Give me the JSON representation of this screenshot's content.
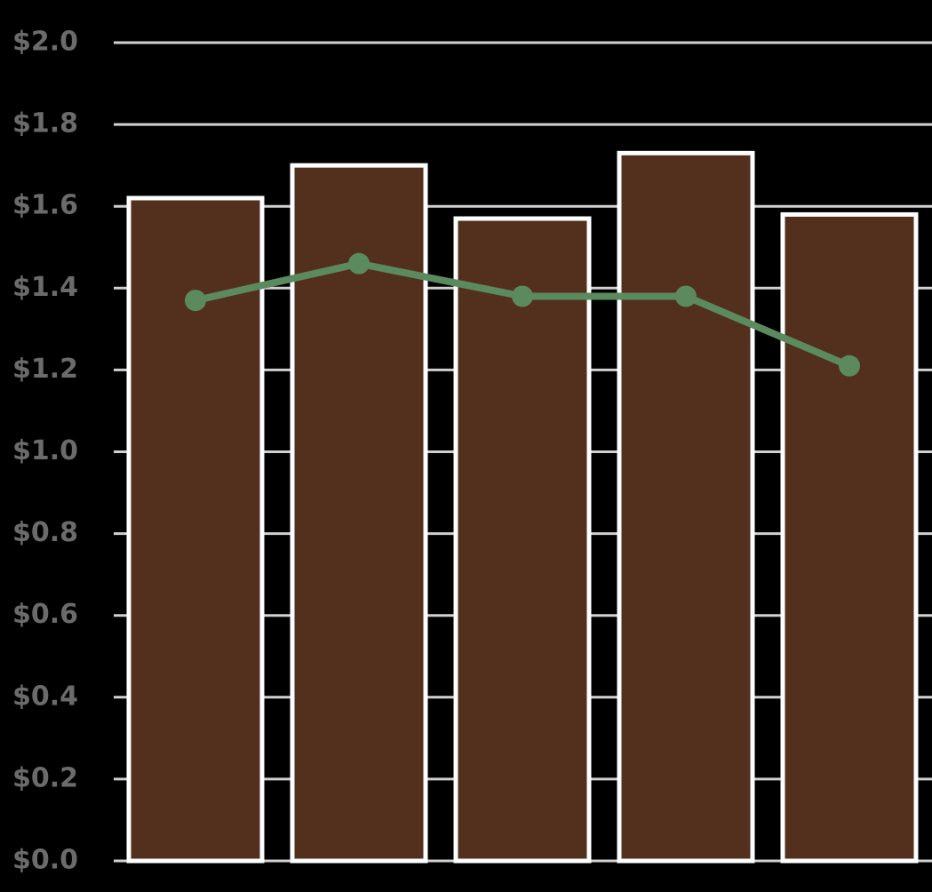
{
  "chart_data": {
    "type": "bar",
    "categories": [
      null,
      null,
      null,
      null,
      null
    ],
    "series": [
      {
        "type": "bar",
        "color": "#53301e",
        "values": [
          1.62,
          1.7,
          1.57,
          1.73,
          1.58
        ]
      },
      {
        "type": "line",
        "color": "#5b8a5f",
        "values": [
          1.37,
          1.46,
          1.38,
          1.38,
          1.21
        ]
      }
    ],
    "ylim": [
      0,
      2.0
    ],
    "yticks": [
      {
        "value": 0,
        "label": "$0.0"
      },
      {
        "value": 0.2,
        "label": "$0.2"
      },
      {
        "value": 0.4,
        "label": "$0.4"
      },
      {
        "value": 0.6,
        "label": "$0.6"
      },
      {
        "value": 0.8,
        "label": "$0.8"
      },
      {
        "value": 1.0,
        "label": "$1.0"
      },
      {
        "value": 1.2,
        "label": "$1.2"
      },
      {
        "value": 1.4,
        "label": "$1.4"
      },
      {
        "value": 1.6,
        "label": "$1.6"
      },
      {
        "value": 1.8,
        "label": "$1.8"
      },
      {
        "value": 2.0,
        "label": "$2.0"
      }
    ],
    "grid": true
  }
}
